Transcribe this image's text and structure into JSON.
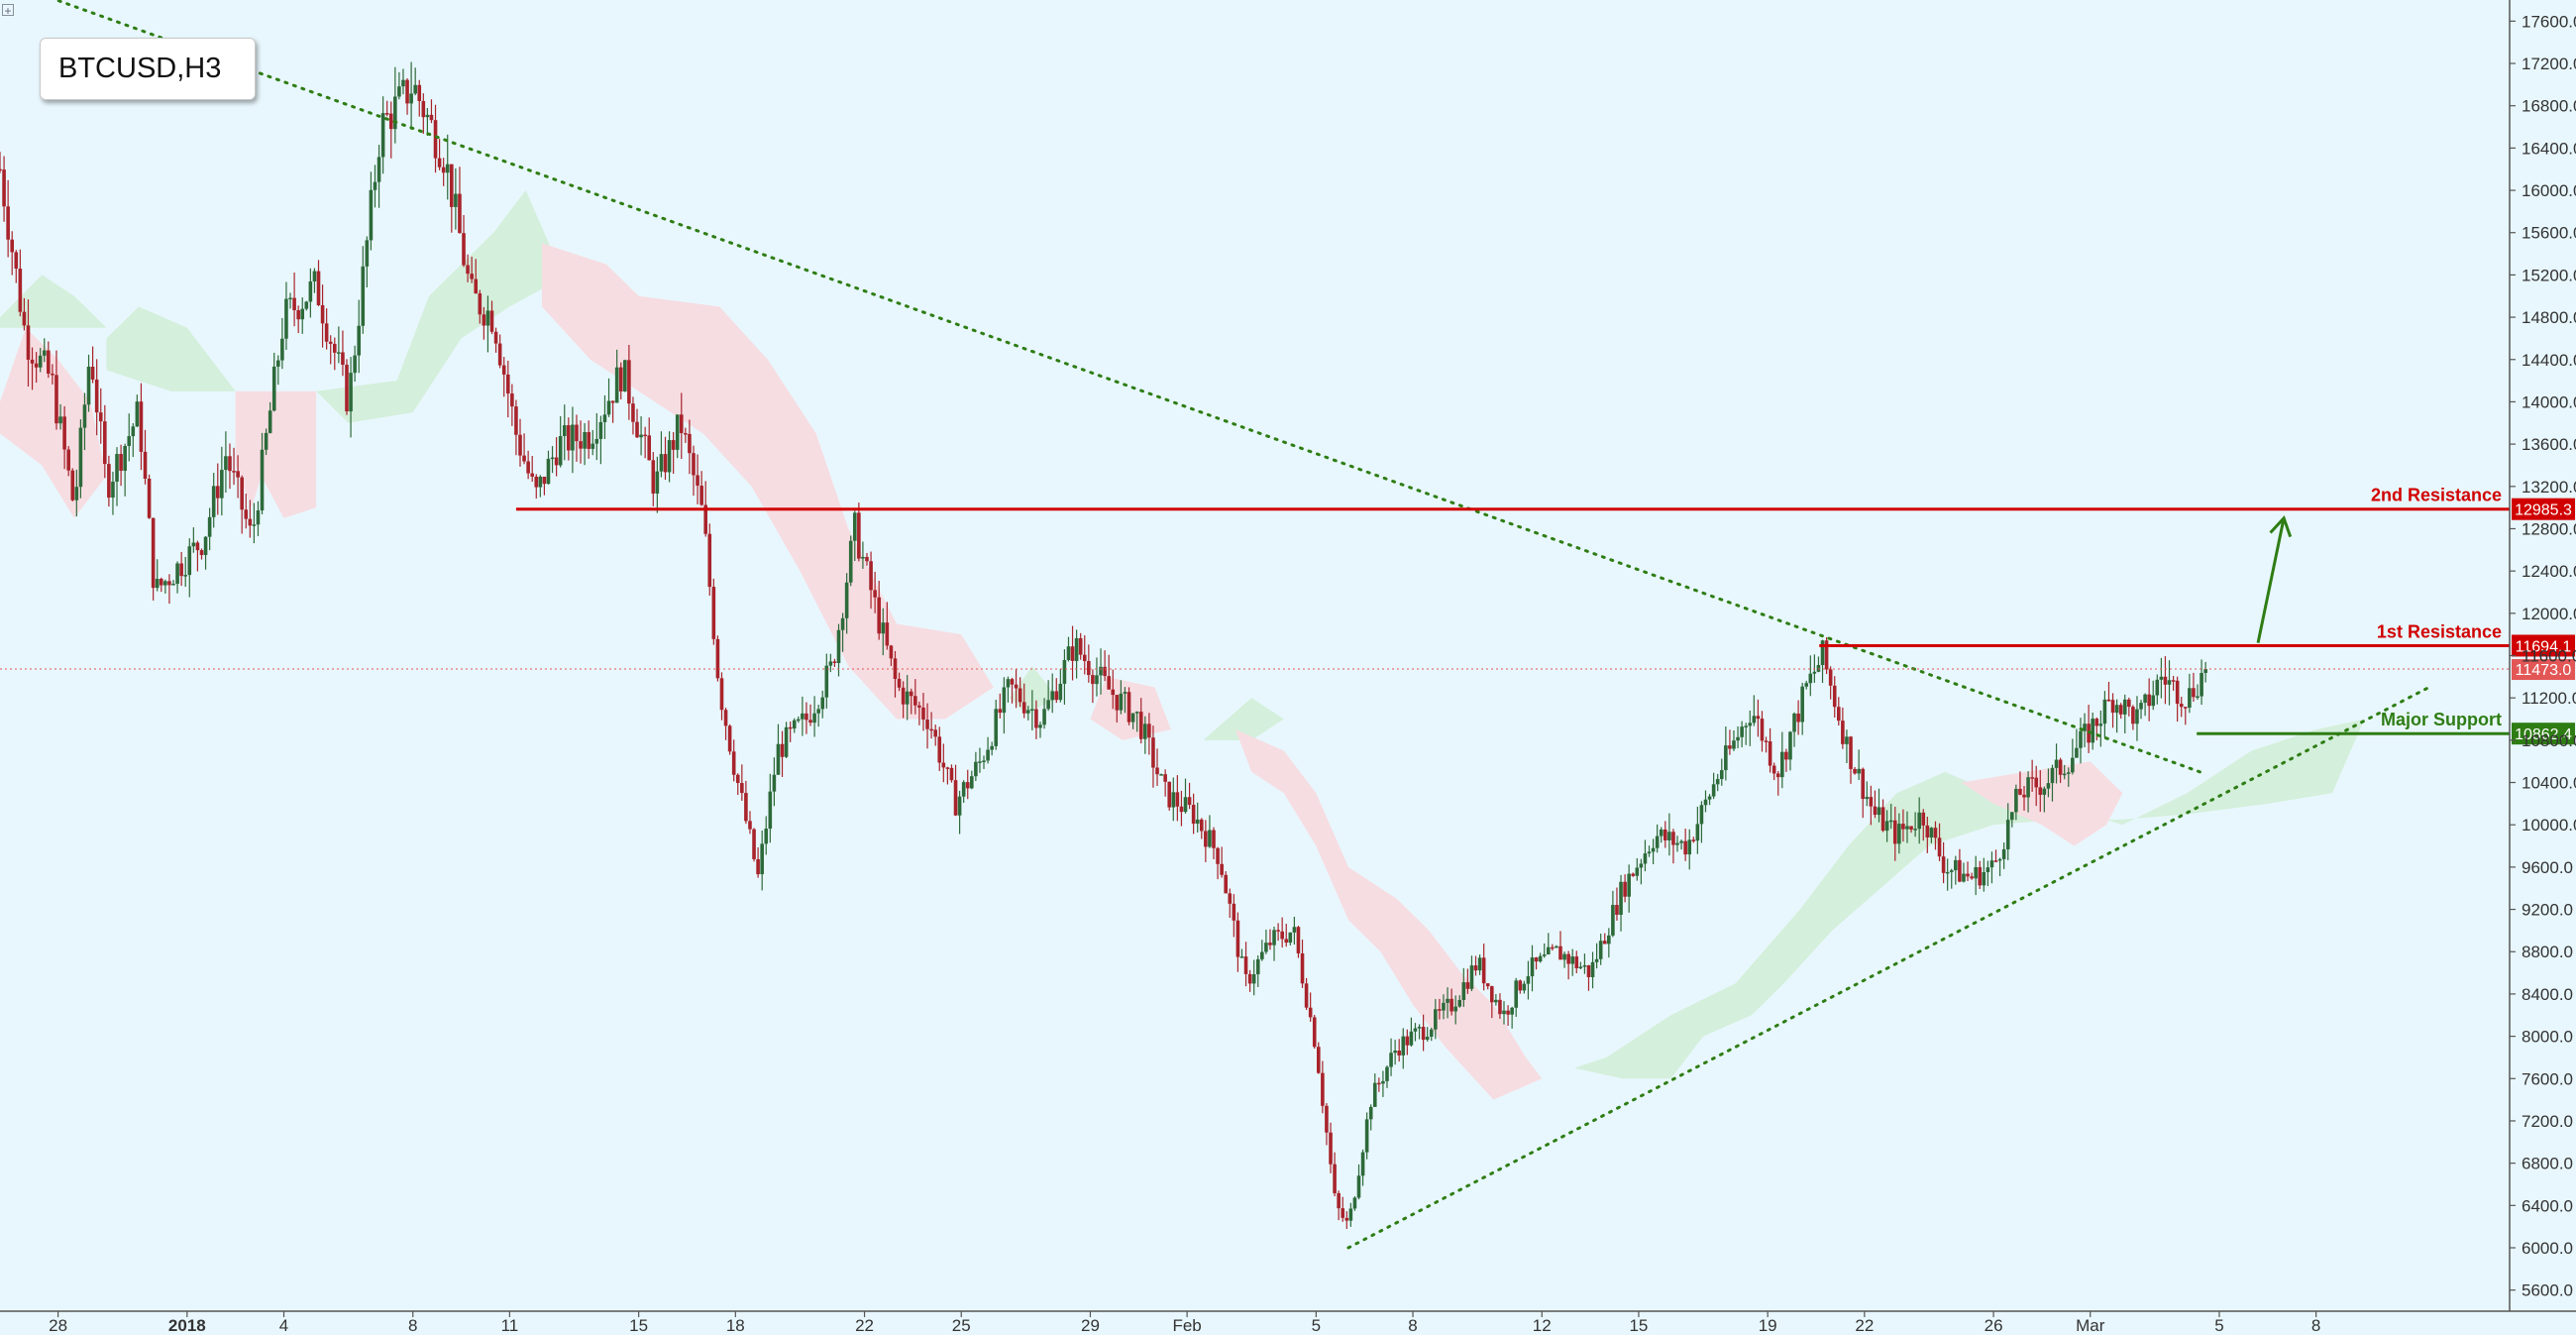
{
  "symbol_label": "BTCUSD,H3",
  "colors": {
    "background": "#e8f7fd",
    "bull_candle": "#2d6a3a",
    "bear_candle": "#a8232b",
    "resistance": "#d10000",
    "support": "#2e7d14",
    "trendline": "#2e7d14",
    "cloud_bull": "#d4efdb",
    "cloud_bear": "#f6dde2",
    "axis_text": "#333333",
    "current_price_bg": "#e35656"
  },
  "icons": {
    "corner": "expand-box-icon"
  },
  "chart_data": {
    "type": "candlestick",
    "title": "BTCUSD,H3",
    "ylim": [
      5400,
      17800
    ],
    "y_ticks": [
      5600,
      6000,
      6400,
      6800,
      7200,
      7600,
      8000,
      8400,
      8800,
      9200,
      9600,
      10000,
      10400,
      10800,
      11200,
      11600,
      12000,
      12400,
      12800,
      13200,
      13600,
      14000,
      14400,
      14800,
      15200,
      15600,
      16000,
      16400,
      16800,
      17200,
      17600
    ],
    "y_tick_labels": [
      "5600.0",
      "6000.0",
      "6400.0",
      "6800.0",
      "7200.0",
      "7600.0",
      "8000.0",
      "8400.0",
      "8800.0",
      "9200.0",
      "9600.0",
      "10000.0",
      "10400.0",
      "10800.0",
      "11200.0",
      "11600.0",
      "12000.0",
      "12400.0",
      "12800.0",
      "13200.0",
      "13600.0",
      "14000.0",
      "14400.0",
      "14800.0",
      "15200.0",
      "15600.0",
      "16000.0",
      "16400.0",
      "16800.0",
      "17200.0",
      "17600.0"
    ],
    "x_labels": [
      "28",
      "2018",
      "4",
      "8",
      "11",
      "15",
      "18",
      "22",
      "25",
      "29",
      "Feb",
      "5",
      "8",
      "12",
      "15",
      "19",
      "22",
      "26",
      "Mar",
      "5",
      "8"
    ],
    "x_label_days": [
      -4,
      0,
      3,
      7,
      10,
      14,
      17,
      21,
      24,
      28,
      31,
      35,
      38,
      42,
      45,
      49,
      52,
      56,
      59,
      63,
      66
    ],
    "x_range_days": [
      -5.8,
      72.0
    ],
    "price_path": [
      [
        -5.8,
        16200
      ],
      [
        -5.0,
        14600
      ],
      [
        -4.2,
        14200
      ],
      [
        -3.5,
        13000
      ],
      [
        -3.0,
        14500
      ],
      [
        -2.5,
        13200
      ],
      [
        -1.5,
        13900
      ],
      [
        -1.0,
        12200
      ],
      [
        0.5,
        12700
      ],
      [
        1.2,
        13500
      ],
      [
        2.0,
        12700
      ],
      [
        3.0,
        14800
      ],
      [
        4.0,
        15100
      ],
      [
        5.0,
        14000
      ],
      [
        6.0,
        16600
      ],
      [
        7.0,
        17000
      ],
      [
        8.0,
        16300
      ],
      [
        8.8,
        15000
      ],
      [
        9.5,
        14800
      ],
      [
        10.2,
        13700
      ],
      [
        10.8,
        13100
      ],
      [
        11.5,
        13600
      ],
      [
        12.5,
        13700
      ],
      [
        13.5,
        14300
      ],
      [
        14.5,
        13200
      ],
      [
        15.3,
        13800
      ],
      [
        16.0,
        12900
      ],
      [
        16.5,
        11300
      ],
      [
        17.0,
        10500
      ],
      [
        17.7,
        9500
      ],
      [
        18.3,
        10700
      ],
      [
        19.2,
        11000
      ],
      [
        20.0,
        11500
      ],
      [
        20.7,
        12800
      ],
      [
        21.3,
        12100
      ],
      [
        22.0,
        11300
      ],
      [
        23.0,
        11000
      ],
      [
        23.8,
        10200
      ],
      [
        24.6,
        10600
      ],
      [
        25.5,
        11300
      ],
      [
        26.5,
        11000
      ],
      [
        27.5,
        11700
      ],
      [
        28.5,
        11300
      ],
      [
        29.5,
        11000
      ],
      [
        30.3,
        10300
      ],
      [
        31.2,
        10100
      ],
      [
        32.0,
        9700
      ],
      [
        32.8,
        8500
      ],
      [
        33.6,
        8900
      ],
      [
        34.3,
        9000
      ],
      [
        35.0,
        7900
      ],
      [
        35.6,
        6400
      ],
      [
        36.0,
        6200
      ],
      [
        36.7,
        7400
      ],
      [
        37.5,
        7900
      ],
      [
        38.5,
        8100
      ],
      [
        39.2,
        8300
      ],
      [
        40.0,
        8700
      ],
      [
        40.8,
        8200
      ],
      [
        41.5,
        8600
      ],
      [
        42.5,
        8800
      ],
      [
        43.5,
        8600
      ],
      [
        44.5,
        9400
      ],
      [
        45.5,
        9900
      ],
      [
        46.5,
        9800
      ],
      [
        47.5,
        10500
      ],
      [
        48.5,
        11100
      ],
      [
        49.3,
        10500
      ],
      [
        50.2,
        11300
      ],
      [
        50.7,
        11600
      ],
      [
        51.5,
        10700
      ],
      [
        52.3,
        10100
      ],
      [
        53.0,
        9900
      ],
      [
        53.8,
        10100
      ],
      [
        54.5,
        9600
      ],
      [
        55.3,
        9500
      ],
      [
        56.0,
        9600
      ],
      [
        56.8,
        10300
      ],
      [
        57.6,
        10400
      ],
      [
        58.3,
        10600
      ],
      [
        59.0,
        10900
      ],
      [
        59.7,
        11200
      ],
      [
        60.5,
        11000
      ],
      [
        61.2,
        11400
      ],
      [
        62.0,
        11200
      ],
      [
        62.6,
        11473
      ]
    ],
    "cloud_bull_regions": [
      [
        [
          -5.8,
          14800
        ],
        [
          -4.5,
          15200
        ],
        [
          -3.5,
          15000
        ],
        [
          -2.5,
          14700
        ],
        [
          -5.8,
          14700
        ]
      ],
      [
        [
          -2.5,
          14600
        ],
        [
          -1.5,
          14900
        ],
        [
          0.0,
          14700
        ],
        [
          1.0,
          14300
        ],
        [
          1.5,
          14100
        ],
        [
          -0.5,
          14100
        ],
        [
          -2.5,
          14300
        ]
      ],
      [
        [
          4.0,
          14100
        ],
        [
          6.5,
          14200
        ],
        [
          7.5,
          15000
        ],
        [
          9.5,
          15600
        ],
        [
          10.5,
          16000
        ],
        [
          11.5,
          15300
        ],
        [
          11.8,
          15200
        ],
        [
          10.0,
          14900
        ],
        [
          8.5,
          14600
        ],
        [
          7.0,
          13900
        ],
        [
          5.0,
          13800
        ]
      ],
      [
        [
          25.5,
          11200
        ],
        [
          26.2,
          11500
        ],
        [
          27.0,
          11200
        ],
        [
          26.0,
          11050
        ]
      ],
      [
        [
          31.5,
          10800
        ],
        [
          33.0,
          11200
        ],
        [
          34.0,
          11000
        ],
        [
          33.0,
          10800
        ]
      ],
      [
        [
          44.0,
          7800
        ],
        [
          46.0,
          8200
        ],
        [
          48.0,
          8500
        ],
        [
          50.0,
          9200
        ],
        [
          51.5,
          9800
        ],
        [
          53.0,
          10300
        ],
        [
          54.5,
          10500
        ],
        [
          56.0,
          10300
        ],
        [
          58.0,
          10200
        ],
        [
          60.0,
          10000
        ],
        [
          62.0,
          10300
        ],
        [
          64.0,
          10700
        ],
        [
          66.0,
          10900
        ],
        [
          67.5,
          11000
        ],
        [
          66.5,
          10300
        ],
        [
          64.5,
          10200
        ],
        [
          62.0,
          10100
        ],
        [
          60.0,
          10050
        ],
        [
          58.0,
          10050
        ],
        [
          56.0,
          10000
        ],
        [
          54.0,
          9800
        ],
        [
          52.5,
          9400
        ],
        [
          51.0,
          9000
        ],
        [
          49.5,
          8500
        ],
        [
          48.5,
          8200
        ],
        [
          47.0,
          8000
        ],
        [
          46.0,
          7600
        ],
        [
          44.5,
          7600
        ],
        [
          43.0,
          7700
        ]
      ]
    ],
    "cloud_bear_regions": [
      [
        [
          -5.8,
          14000
        ],
        [
          -5.0,
          14700
        ],
        [
          -4.0,
          14400
        ],
        [
          -3.0,
          14000
        ],
        [
          -2.5,
          13300
        ],
        [
          -3.5,
          12900
        ],
        [
          -4.5,
          13400
        ],
        [
          -5.8,
          13700
        ]
      ],
      [
        [
          1.5,
          14100
        ],
        [
          4.0,
          14100
        ],
        [
          4.0,
          13000
        ],
        [
          3.0,
          12900
        ],
        [
          2.3,
          13300
        ],
        [
          2.0,
          13000
        ],
        [
          1.5,
          13400
        ]
      ],
      [
        [
          11.0,
          15500
        ],
        [
          13.0,
          15300
        ],
        [
          14.0,
          15000
        ],
        [
          16.5,
          14900
        ],
        [
          18.0,
          14400
        ],
        [
          19.5,
          13700
        ],
        [
          20.5,
          12800
        ],
        [
          22.0,
          11900
        ],
        [
          24.0,
          11800
        ],
        [
          25.0,
          11300
        ],
        [
          23.5,
          11000
        ],
        [
          22.0,
          11000
        ],
        [
          20.5,
          11500
        ],
        [
          19.0,
          12400
        ],
        [
          17.5,
          13200
        ],
        [
          16.0,
          13700
        ],
        [
          14.0,
          14100
        ],
        [
          12.5,
          14400
        ],
        [
          11.0,
          14900
        ]
      ],
      [
        [
          28.5,
          11400
        ],
        [
          30.0,
          11300
        ],
        [
          30.5,
          10900
        ],
        [
          29.0,
          10800
        ],
        [
          28.0,
          11000
        ]
      ],
      [
        [
          32.5,
          10900
        ],
        [
          34.0,
          10700
        ],
        [
          35.0,
          10300
        ],
        [
          36.0,
          9600
        ],
        [
          37.5,
          9300
        ],
        [
          38.5,
          9000
        ],
        [
          39.5,
          8600
        ],
        [
          40.5,
          8300
        ],
        [
          41.5,
          7800
        ],
        [
          42.0,
          7600
        ],
        [
          40.5,
          7400
        ],
        [
          39.0,
          7900
        ],
        [
          38.0,
          8300
        ],
        [
          37.0,
          8800
        ],
        [
          36.0,
          9100
        ],
        [
          35.0,
          9800
        ],
        [
          34.0,
          10300
        ],
        [
          33.0,
          10500
        ]
      ],
      [
        [
          55.0,
          10400
        ],
        [
          57.0,
          10500
        ],
        [
          59.0,
          10600
        ],
        [
          60.0,
          10300
        ],
        [
          59.5,
          10000
        ],
        [
          58.5,
          9800
        ],
        [
          57.5,
          10000
        ],
        [
          56.0,
          10200
        ]
      ]
    ],
    "levels": [
      {
        "label": "2nd Resistance",
        "value": 12985.3,
        "tag": "12985.3",
        "color": "#d10000",
        "start_day": 10.2
      },
      {
        "label": "1st Resistance",
        "value": 11694.1,
        "tag": "11694.1",
        "color": "#d10000",
        "start_day": 50.6
      },
      {
        "label": "Major Support",
        "value": 10862.4,
        "tag": "10862.4",
        "color": "#2e7d14",
        "start_day": 62.3
      }
    ],
    "current_price": {
      "value": 11473.0,
      "tag": "11473.0"
    },
    "trendlines": [
      {
        "from": [
          -4.5,
          17850
        ],
        "to": [
          62.4,
          10500
        ]
      },
      {
        "from": [
          36.0,
          6000
        ],
        "to": [
          69.5,
          11300
        ]
      }
    ],
    "projection_arrow": {
      "from": [
        64.2,
        11720
      ],
      "to": [
        65.0,
        12900
      ]
    }
  }
}
